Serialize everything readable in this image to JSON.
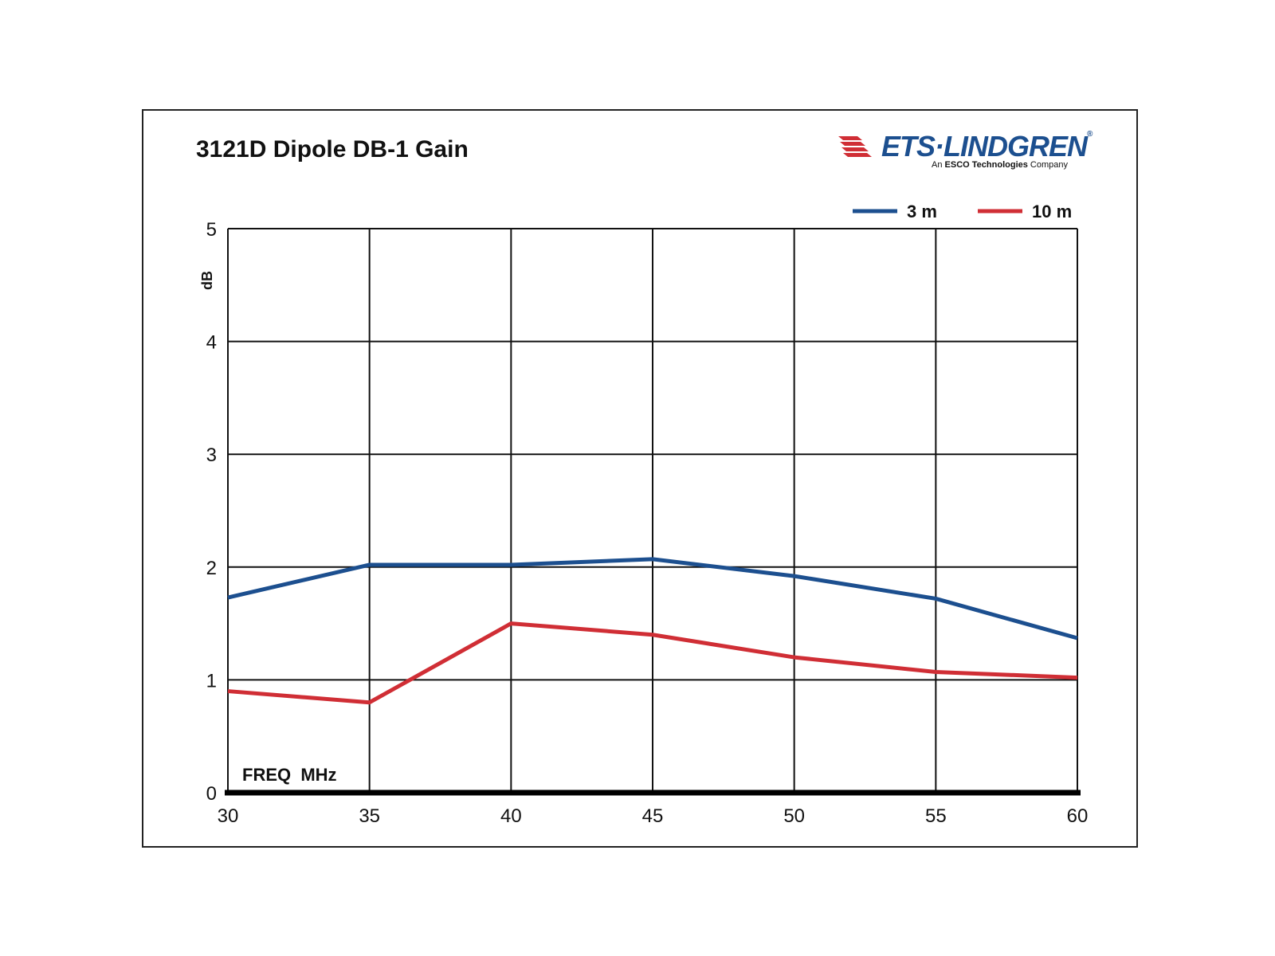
{
  "chart_data": {
    "type": "line",
    "title": "3121D Dipole DB-1 Gain",
    "xlabel": "FREQ  MHz",
    "ylabel": "dB",
    "x": [
      30,
      35,
      40,
      45,
      50,
      55,
      60
    ],
    "xlim": [
      30,
      60
    ],
    "ylim": [
      0,
      5
    ],
    "xticks": [
      "30",
      "35",
      "40",
      "45",
      "50",
      "55",
      "60"
    ],
    "yticks": [
      "0",
      "1",
      "2",
      "3",
      "4",
      "5"
    ],
    "grid": true,
    "legend_position": "top-right",
    "series": [
      {
        "name": "3 m",
        "color": "#1c4f8f",
        "values": [
          1.73,
          2.02,
          2.02,
          2.07,
          1.92,
          1.72,
          1.37
        ]
      },
      {
        "name": "10 m",
        "color": "#d02e35",
        "values": [
          0.9,
          0.8,
          1.5,
          1.4,
          1.2,
          1.07,
          1.02
        ]
      }
    ]
  },
  "logo": {
    "brand": "ETS·LINDGREN",
    "reg_mark": "®",
    "tagline_prefix": "An ",
    "tagline_bold": "ESCO Technologies",
    "tagline_suffix": " Company",
    "color": "#d02e35"
  }
}
